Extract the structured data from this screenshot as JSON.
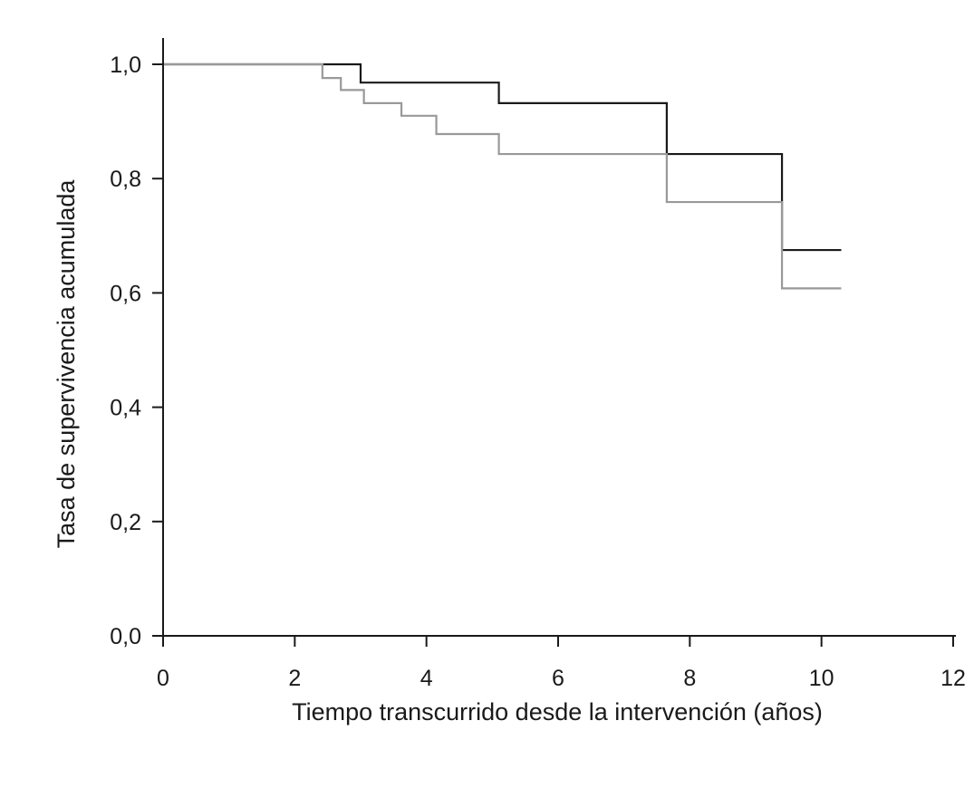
{
  "chart_data": {
    "type": "line",
    "step": true,
    "xlabel": "Tiempo transcurrido desde la intervención (años)",
    "ylabel": "Tasa de supervivencia acumulada",
    "xlim": [
      0,
      12
    ],
    "ylim": [
      0,
      1
    ],
    "xticks": [
      0,
      2,
      4,
      6,
      8,
      10,
      12
    ],
    "xtick_labels": [
      "0",
      "2",
      "4",
      "6",
      "8",
      "10",
      "12"
    ],
    "yticks": [
      0,
      0.2,
      0.4,
      0.6,
      0.8,
      1.0
    ],
    "ytick_labels": [
      "0,0",
      "0,2",
      "0,4",
      "0,6",
      "0,8",
      "1,0"
    ],
    "grid": false,
    "series": [
      {
        "color": "#1a1a1a",
        "x": [
          0,
          3.0,
          5.1,
          7.65,
          9.4,
          10.3
        ],
        "y": [
          1.0,
          0.968,
          0.932,
          0.843,
          0.675,
          0.675
        ]
      },
      {
        "color": "#999999",
        "x": [
          0,
          2.42,
          2.7,
          3.05,
          3.62,
          4.15,
          5.1,
          7.65,
          9.4,
          10.3
        ],
        "y": [
          1.0,
          0.976,
          0.955,
          0.932,
          0.91,
          0.878,
          0.843,
          0.759,
          0.608,
          0.608
        ]
      }
    ]
  }
}
